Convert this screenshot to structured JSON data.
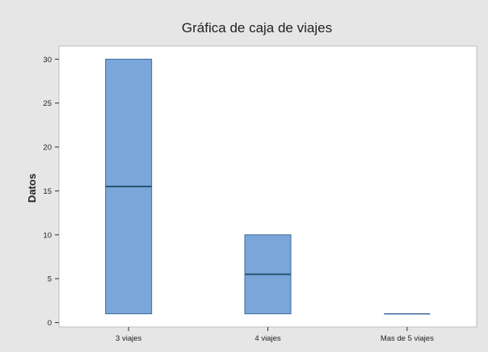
{
  "chart_data": {
    "type": "box",
    "title": "Gráfica de caja de viajes",
    "xlabel": "",
    "ylabel": "Datos",
    "ylim": [
      -0.5,
      31.5
    ],
    "yticks": [
      0,
      5,
      10,
      15,
      20,
      25,
      30
    ],
    "grid": false,
    "legend": "none",
    "categories": [
      "3 viajes",
      "4 viajes",
      "Mas de 5 viajes"
    ],
    "boxes": [
      {
        "category": "3 viajes",
        "q1": 1,
        "median": 15.5,
        "q3": 30
      },
      {
        "category": "4 viajes",
        "q1": 1,
        "median": 5.5,
        "q3": 10
      },
      {
        "category": "Mas de 5 viajes",
        "q1": 1,
        "median": 1,
        "q3": 1
      }
    ],
    "colors": {
      "background": "#e6e6e6",
      "plot_background": "#ffffff",
      "box_fill": "#7aa6da",
      "box_stroke": "#3e6c9a",
      "median_line": "#2a5470",
      "axis": "#333333",
      "text": "#222222"
    }
  }
}
